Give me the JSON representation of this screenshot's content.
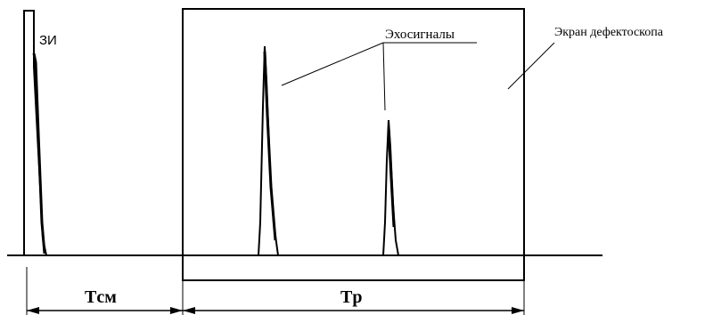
{
  "labels": {
    "zi": "ЗИ",
    "echoes": "Эхосигналы",
    "screen": "Экран дефектоскопа",
    "t_delay": "Tсм",
    "t_sweep": "Tp"
  }
}
